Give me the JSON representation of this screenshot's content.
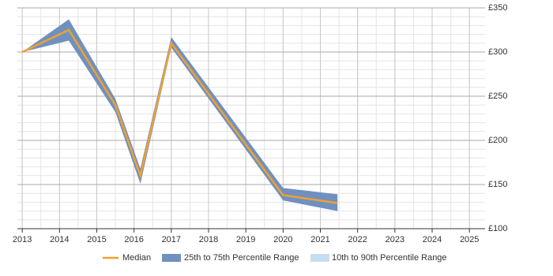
{
  "chart_data": {
    "type": "line",
    "x": [
      2013.0,
      2014.25,
      2015.5,
      2016.17,
      2017.0,
      2020.0,
      2021.46
    ],
    "series": [
      {
        "name": "Median",
        "color": "#f0a030",
        "values": [
          300,
          325,
          240,
          160,
          310,
          138,
          129
        ]
      },
      {
        "name": "25th to 75th Percentile Range",
        "color": "#7091bf",
        "low": [
          300,
          313,
          232,
          151,
          305,
          132,
          120
        ],
        "high": [
          300,
          337,
          247,
          168,
          317,
          146,
          139
        ]
      },
      {
        "name": "10th to 90th Percentile Range",
        "color": "#c8dcef",
        "low": [
          300,
          313,
          232,
          151,
          305,
          132,
          120
        ],
        "high": [
          300,
          337,
          247,
          168,
          317,
          146,
          139
        ]
      }
    ],
    "xlim": [
      2012.87,
      2025.42
    ],
    "xticks": [
      2013,
      2014,
      2015,
      2016,
      2017,
      2018,
      2019,
      2020,
      2021,
      2022,
      2023,
      2024,
      2025
    ],
    "ylim": [
      100,
      350
    ],
    "yticks": [
      {
        "value": 100,
        "label": "£100"
      },
      {
        "value": 150,
        "label": "£150"
      },
      {
        "value": 200,
        "label": "£200"
      },
      {
        "value": 250,
        "label": "£250"
      },
      {
        "value": 300,
        "label": "£300"
      },
      {
        "value": 350,
        "label": "£350"
      }
    ],
    "grid": true,
    "minor_grid": true,
    "legend": "bottom"
  }
}
